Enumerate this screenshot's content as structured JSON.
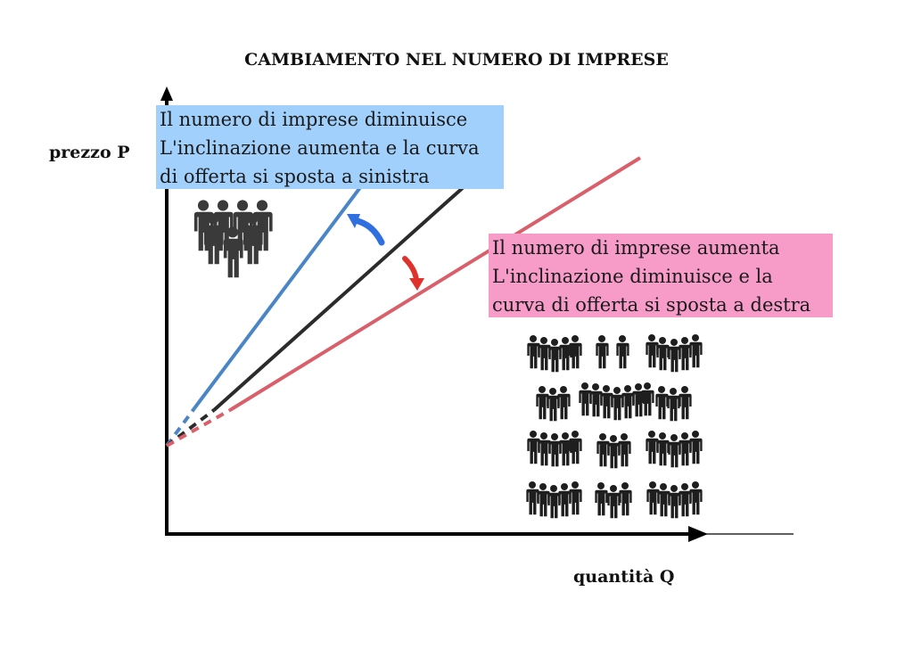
{
  "title": "CAMBIAMENTO NEL NUMERO DI IMPRESE",
  "y_axis_label": "prezzo P",
  "x_axis_label": "quantità Q",
  "decrease_box": {
    "lines": [
      "Il numero di imprese diminuisce",
      "L'inclinazione aumenta e la curva",
      "di offerta si sposta a sinistra"
    ],
    "color": "#a0d0fb"
  },
  "increase_box": {
    "lines": [
      "Il numero di imprese aumenta",
      "L'inclinazione diminuisce e la",
      "curva di offerta si sposta a destra"
    ],
    "color": "#f79bc9"
  },
  "curves": {
    "original": {
      "color": "#2b2b2b"
    },
    "fewer_firms": {
      "color": "#4a86c5"
    },
    "more_firms": {
      "color": "#d9606a"
    }
  },
  "arrows": {
    "to_left": "#2f6fe0",
    "to_right": "#e0322c"
  },
  "icons": {
    "small_group": "people-group-icon",
    "large_crowd": "crowd-icon"
  }
}
